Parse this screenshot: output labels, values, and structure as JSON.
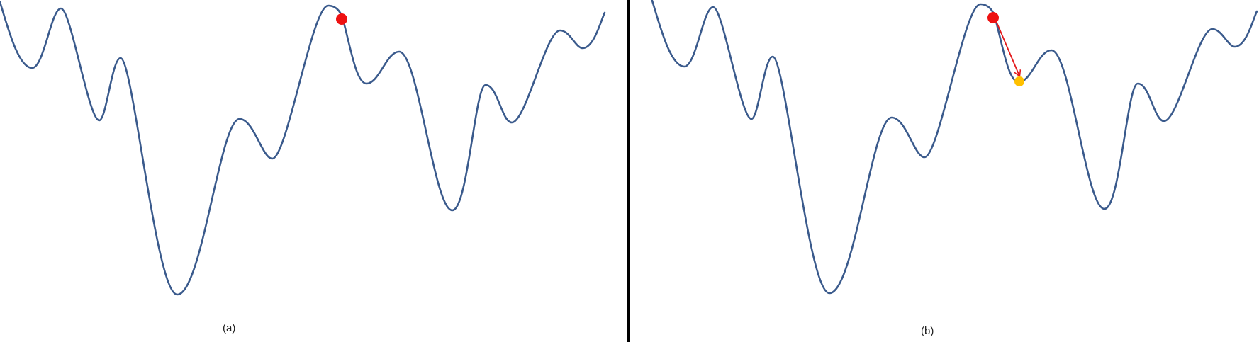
{
  "panels": [
    {
      "caption": "(a)",
      "markers": [
        {
          "role": "current-point",
          "color": "#ee1111"
        }
      ],
      "arrow": null
    },
    {
      "caption": "(b)",
      "markers": [
        {
          "role": "current-point",
          "color": "#ee1111"
        },
        {
          "role": "next-point",
          "color": "#ffc000"
        }
      ],
      "arrow": {
        "from": "current-point",
        "to": "next-point",
        "color": "#e31a1c"
      }
    }
  ],
  "colors": {
    "curve": "#3a5a8c",
    "divider": "#000000",
    "background": "#ffffff"
  }
}
